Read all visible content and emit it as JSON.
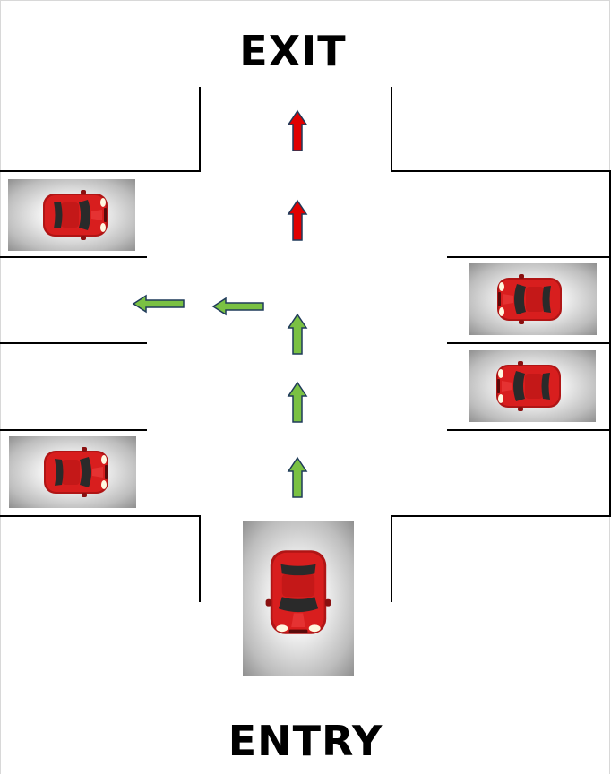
{
  "labels": {
    "exit": "EXIT",
    "entry": "ENTRY"
  },
  "colors": {
    "line": "#000000",
    "arrow_red": "#e00000",
    "arrow_green": "#7ac143",
    "arrow_outline": "#1f3a5a",
    "car_body": "#d81e1e"
  },
  "arrows": {
    "path_direction": [
      "up",
      "up",
      "up",
      "left",
      "left",
      "up",
      "up"
    ]
  },
  "parked_cars": [
    {
      "side": "left",
      "facing": "right"
    },
    {
      "side": "right",
      "facing": "left"
    },
    {
      "side": "right",
      "facing": "left"
    },
    {
      "side": "left",
      "facing": "right"
    }
  ],
  "entry_car": {
    "facing": "down"
  }
}
